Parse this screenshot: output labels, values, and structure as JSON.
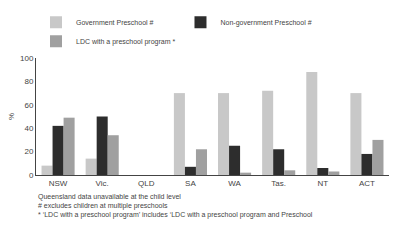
{
  "chart_data": {
    "type": "bar",
    "categories": [
      "NSW",
      "Vic.",
      "QLD",
      "SA",
      "WA",
      "Tas.",
      "NT",
      "ACT"
    ],
    "series": [
      {
        "name": "Government Preschool #",
        "color": "#c8c8c8",
        "values": [
          8,
          14,
          0,
          70,
          70,
          72,
          88,
          70
        ]
      },
      {
        "name": "Non-government Preschool #",
        "color": "#2d2d2d",
        "values": [
          42,
          50,
          0,
          7,
          25,
          22,
          6,
          18
        ]
      },
      {
        "name": "LDC with a preschool program *",
        "color": "#a0a0a0",
        "values": [
          49,
          34,
          0,
          22,
          2,
          4,
          3,
          30
        ]
      }
    ],
    "ylabel": "%",
    "ylim": [
      0,
      100
    ],
    "yticks": [
      0,
      20,
      40,
      60,
      80,
      100
    ],
    "grid": false,
    "legend": "top",
    "annotations": [
      "Queensland data unavailable at the child level",
      "# excludes children at multiple preschools",
      "* ‘LDC with a preschool program’ includes ‘LDC with a preschool program and Preschool"
    ]
  }
}
